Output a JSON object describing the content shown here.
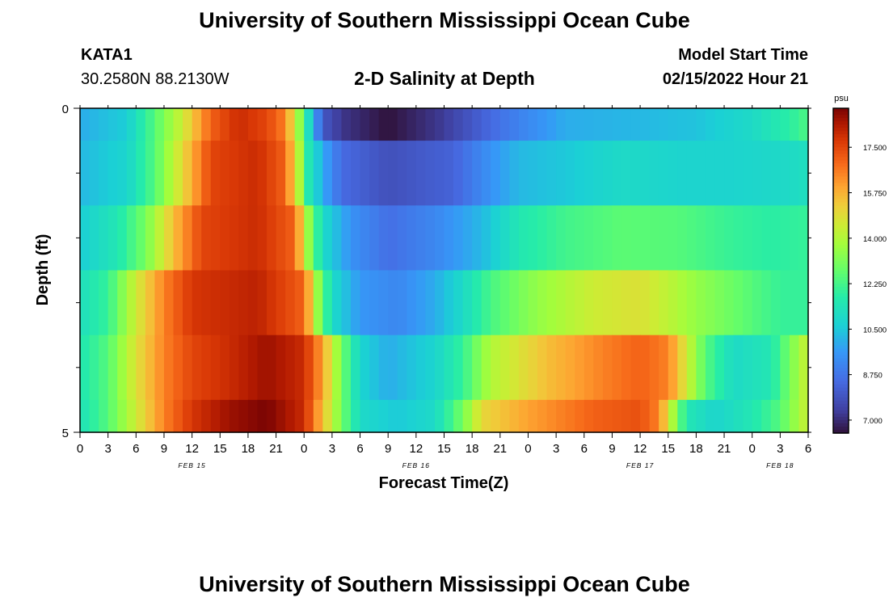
{
  "header": {
    "title": "University of Southern Mississippi Ocean Cube",
    "station": "KATA1",
    "coords": "30.2580N  88.2130W",
    "subtitle": "2-D Salinity at Depth",
    "model_start_label": "Model Start Time",
    "model_start_value": "02/15/2022 Hour 21"
  },
  "footer": {
    "title": "University of Southern Mississippi Ocean Cube"
  },
  "chart_data": {
    "type": "heatmap",
    "title": "2-D Salinity at Depth",
    "xlabel": "Forecast Time(Z)",
    "ylabel": "Depth (ft)",
    "colorbar_unit": "psu",
    "colorbar_ticks": [
      7.0,
      8.75,
      10.5,
      12.25,
      14.0,
      15.75,
      17.5
    ],
    "colorbar_tick_labels": [
      "7.000",
      "8.750",
      "10.500",
      "12.250",
      "14.000",
      "15.750",
      "17.500"
    ],
    "value_range": [
      6.5,
      19.0
    ],
    "x_tick_labels": [
      "0",
      "3",
      "6",
      "9",
      "12",
      "15",
      "18",
      "21",
      "0",
      "3",
      "6",
      "9",
      "12",
      "15",
      "18",
      "21",
      "0",
      "3",
      "6",
      "9",
      "12",
      "15",
      "18",
      "21",
      "0",
      "3",
      "6"
    ],
    "date_labels": [
      {
        "label": "FEB 15",
        "tick_index": 4
      },
      {
        "label": "FEB 16",
        "tick_index": 12
      },
      {
        "label": "FEB 17",
        "tick_index": 20
      },
      {
        "label": "FEB 18",
        "tick_index": 25
      }
    ],
    "y_tick_labels": [
      "0",
      "5"
    ],
    "y_minor_ticks": 4,
    "depth_rows": 5,
    "hours_total": 78,
    "rows": [
      {
        "anchors": [
          [
            0,
            10.0
          ],
          [
            5,
            10.6
          ],
          [
            8,
            12.5
          ],
          [
            11,
            14.5
          ],
          [
            14,
            17.0
          ],
          [
            17,
            18.0
          ],
          [
            20,
            17.5
          ],
          [
            22,
            16.5
          ],
          [
            23.5,
            13.5
          ],
          [
            24.3,
            11.5
          ],
          [
            26,
            8.0
          ],
          [
            28,
            7.2
          ],
          [
            33,
            6.5
          ],
          [
            39,
            7.3
          ],
          [
            45,
            8.7
          ],
          [
            52,
            10.0
          ],
          [
            60,
            10.2
          ],
          [
            66,
            10.4
          ],
          [
            72,
            11.0
          ],
          [
            76,
            11.8
          ],
          [
            78,
            12.4
          ]
        ]
      },
      {
        "anchors": [
          [
            0,
            10.2
          ],
          [
            5,
            10.8
          ],
          [
            8,
            12.5
          ],
          [
            11,
            15.0
          ],
          [
            14,
            17.5
          ],
          [
            19,
            18.0
          ],
          [
            22,
            17.0
          ],
          [
            23.5,
            14.0
          ],
          [
            24.5,
            11.5
          ],
          [
            26,
            10.0
          ],
          [
            28,
            8.5
          ],
          [
            33,
            7.8
          ],
          [
            40,
            8.3
          ],
          [
            44,
            9.5
          ],
          [
            47,
            10.2
          ],
          [
            52,
            10.5
          ],
          [
            58,
            11.0
          ],
          [
            64,
            10.8
          ],
          [
            70,
            10.8
          ],
          [
            76,
            11.0
          ],
          [
            78,
            11.2
          ]
        ]
      },
      {
        "anchors": [
          [
            0,
            10.6
          ],
          [
            4,
            11.5
          ],
          [
            7,
            13.0
          ],
          [
            10,
            15.5
          ],
          [
            13,
            17.5
          ],
          [
            19,
            18.0
          ],
          [
            23,
            17.0
          ],
          [
            24.5,
            13.5
          ],
          [
            26,
            11.0
          ],
          [
            29,
            9.5
          ],
          [
            33,
            8.6
          ],
          [
            38,
            9.2
          ],
          [
            43,
            10.2
          ],
          [
            47,
            11.5
          ],
          [
            52,
            12.2
          ],
          [
            58,
            12.6
          ],
          [
            64,
            12.5
          ],
          [
            70,
            12.0
          ],
          [
            74,
            11.8
          ],
          [
            78,
            12.0
          ]
        ]
      },
      {
        "anchors": [
          [
            0,
            11.2
          ],
          [
            3,
            12.0
          ],
          [
            6,
            14.5
          ],
          [
            9,
            16.5
          ],
          [
            12,
            17.8
          ],
          [
            19,
            18.2
          ],
          [
            24,
            17.0
          ],
          [
            25.5,
            13.5
          ],
          [
            27,
            11.0
          ],
          [
            30,
            9.6
          ],
          [
            34,
            9.2
          ],
          [
            38,
            10.0
          ],
          [
            41,
            11.0
          ],
          [
            44,
            12.3
          ],
          [
            49,
            13.5
          ],
          [
            55,
            14.5
          ],
          [
            60,
            14.8
          ],
          [
            63,
            14.2
          ],
          [
            66,
            13.5
          ],
          [
            72,
            12.5
          ],
          [
            75,
            12.0
          ],
          [
            78,
            12.0
          ]
        ]
      },
      {
        "anchors": [
          [
            0,
            11.5
          ],
          [
            3,
            12.5
          ],
          [
            6,
            14.8
          ],
          [
            9,
            16.5
          ],
          [
            12,
            17.5
          ],
          [
            16,
            18.0
          ],
          [
            20,
            18.6
          ],
          [
            24,
            18.0
          ],
          [
            26,
            16.0
          ],
          [
            28,
            13.0
          ],
          [
            30,
            10.8
          ],
          [
            33,
            10.0
          ],
          [
            38,
            10.8
          ],
          [
            41,
            12.0
          ],
          [
            44,
            14.0
          ],
          [
            50,
            15.5
          ],
          [
            56,
            16.5
          ],
          [
            60,
            17.0
          ],
          [
            63,
            16.5
          ],
          [
            65,
            14.5
          ],
          [
            67,
            12.5
          ],
          [
            70,
            11.0
          ],
          [
            74,
            11.5
          ],
          [
            76,
            13.0
          ],
          [
            78,
            14.5
          ]
        ]
      },
      {
        "anchors": [
          [
            0,
            11.3
          ],
          [
            3,
            12.5
          ],
          [
            6,
            14.5
          ],
          [
            9,
            16.5
          ],
          [
            12,
            17.8
          ],
          [
            16,
            18.6
          ],
          [
            20,
            19.0
          ],
          [
            24,
            18.0
          ],
          [
            26,
            15.5
          ],
          [
            28,
            13.0
          ],
          [
            30,
            11.0
          ],
          [
            34,
            10.5
          ],
          [
            38,
            11.0
          ],
          [
            41,
            13.0
          ],
          [
            43,
            15.0
          ],
          [
            48,
            16.0
          ],
          [
            55,
            17.0
          ],
          [
            60,
            17.3
          ],
          [
            62,
            16.5
          ],
          [
            64,
            13.0
          ],
          [
            65,
            11.5
          ],
          [
            68,
            10.8
          ],
          [
            72,
            11.5
          ],
          [
            75,
            12.5
          ],
          [
            78,
            14.5
          ]
        ]
      }
    ]
  }
}
